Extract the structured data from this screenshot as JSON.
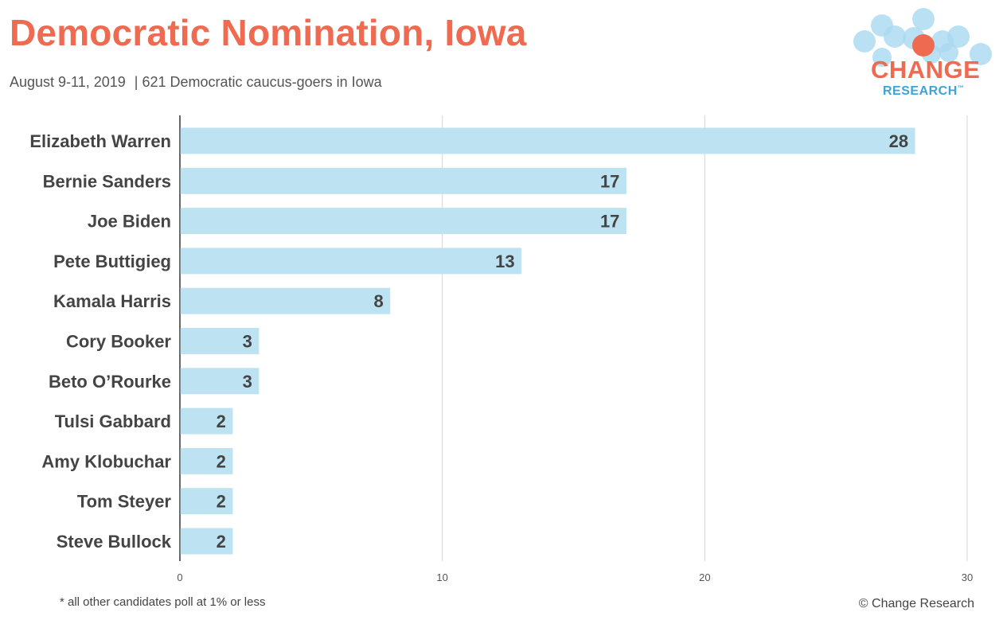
{
  "header": {
    "title": "Democratic Nomination, Iowa",
    "date": "August 9-11, 2019",
    "sample": "621 Democratic caucus-goers in Iowa"
  },
  "logo": {
    "line1": "CHANGE",
    "line2": "RESEARCH",
    "tm": "™"
  },
  "footer": {
    "note": "* all other candidates poll at 1% or less",
    "credit": "© Change Research"
  },
  "colors": {
    "title": "#ee6a50",
    "bar": "#bde3f2",
    "bar_label": "#444444",
    "category_label": "#444444",
    "grid": "#d4d4d4",
    "axis": "#333333",
    "logo_dots": "#a9d8f0",
    "logo_accent": "#ee6a50",
    "logo_blue": "#3ea4d8"
  },
  "chart_data": {
    "type": "bar",
    "orientation": "horizontal",
    "categories": [
      "Elizabeth Warren",
      "Bernie Sanders",
      "Joe Biden",
      "Pete Buttigieg",
      "Kamala Harris",
      "Cory Booker",
      "Beto O’Rourke",
      "Tulsi Gabbard",
      "Amy Klobuchar",
      "Tom Steyer",
      "Steve Bullock"
    ],
    "values": [
      28,
      17,
      17,
      13,
      8,
      3,
      3,
      2,
      2,
      2,
      2
    ],
    "value_labels": [
      "28",
      "17",
      "17",
      "13",
      "8",
      "3",
      "3",
      "2",
      "2",
      "2",
      "2"
    ],
    "xlim": [
      0,
      30
    ],
    "xticks": [
      0,
      10,
      20,
      30
    ],
    "xtick_labels": [
      "0",
      "10",
      "20",
      "30"
    ],
    "grid": true,
    "legend": "none"
  }
}
